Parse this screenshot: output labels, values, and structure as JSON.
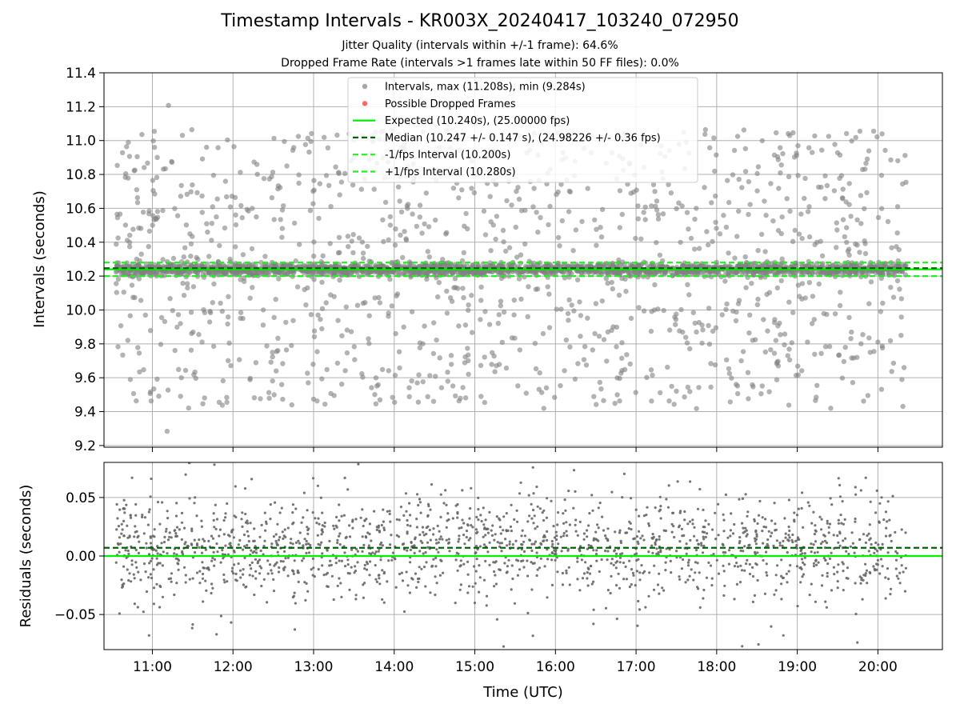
{
  "figure": {
    "title": "Timestamp Intervals - KR003X_20240417_103240_072950",
    "subtitle_jitter": "Jitter Quality (intervals within +/-1 frame): 64.6%",
    "subtitle_dropped": "Dropped Frame Rate (intervals >1 frames late within 50 FF files): 0.0%"
  },
  "colors": {
    "points": "#808080",
    "dropped": "#ff6666",
    "expected": "#00ee00",
    "median": "#006400",
    "interval_bounds": "#22ee22",
    "grid": "#b0b0b0"
  },
  "chart_data": [
    {
      "type": "scatter",
      "id": "intervals",
      "ylabel": "Intervals (seconds)",
      "xlim": [
        "10:24",
        "20:48"
      ],
      "ylim": [
        9.19,
        11.4
      ],
      "y_ticks": [
        "9.2",
        "9.4",
        "9.6",
        "9.8",
        "10.0",
        "10.2",
        "10.4",
        "10.6",
        "10.8",
        "11.0",
        "11.2",
        "11.4"
      ],
      "grid": true,
      "legend_position": "top-center",
      "legend": [
        "Intervals, max (11.208s), min (9.284s)",
        "Possible Dropped Frames",
        "Expected (10.240s), (25.00000 fps)",
        "Median (10.247 +/- 0.147 s), (24.98226 +/- 0.36 fps)",
        "-1/fps Interval (10.200s)",
        "+1/fps Interval (10.280s)"
      ],
      "data_range": [
        "10:33",
        "20:21"
      ],
      "stats": {
        "max": 11.208,
        "min": 9.284,
        "expected": 10.24,
        "median": 10.247,
        "median_spread": 0.147,
        "minus_interval": 10.2,
        "plus_interval": 10.28
      },
      "approx_point_count": 3200,
      "dropped_frames": []
    },
    {
      "type": "scatter",
      "id": "residuals",
      "ylabel": "Residuals (seconds)",
      "xlabel": "Time (UTC)",
      "xlim": [
        "10:24",
        "20:48"
      ],
      "ylim": [
        -0.08,
        0.08
      ],
      "y_ticks": [
        "−0.05",
        "0.00",
        "0.05"
      ],
      "x_ticks": [
        "11:00",
        "12:00",
        "13:00",
        "14:00",
        "15:00",
        "16:00",
        "17:00",
        "18:00",
        "19:00",
        "20:00"
      ],
      "grid": true,
      "zero_line": 0.0,
      "median_offset": 0.007,
      "approx_point_count": 1700
    }
  ]
}
